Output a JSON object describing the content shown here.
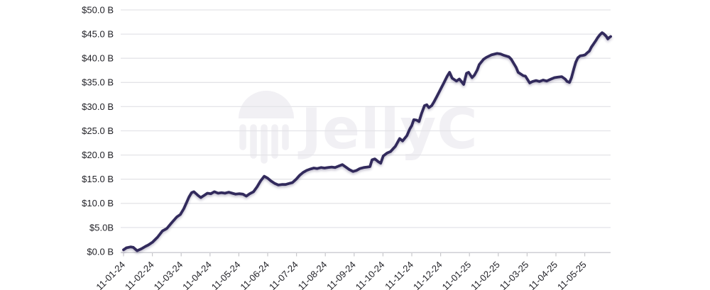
{
  "chart": {
    "watermark_text": "JellyC",
    "colors": {
      "background": "#ffffff",
      "line": "#312b5c",
      "line_shadow": "#3a3660",
      "grid": "#e4e4e8",
      "axis": "#cfcfd4",
      "tick": "#c7c7cb",
      "label": "#222228",
      "watermark": "#f1f0f4"
    }
  },
  "chart_data": {
    "type": "line",
    "legend": "none",
    "grid": "horizontal-only",
    "ylim": [
      0,
      50
    ],
    "y_unit": "USD billions",
    "y_ticks": [
      0,
      5,
      10,
      15,
      20,
      25,
      30,
      35,
      40,
      45,
      50
    ],
    "y_tick_labels": [
      "$0.0 B",
      "$5.0B",
      "$10.0 B",
      "$15.0 B",
      "$20.0 B",
      "$25.0 B",
      "$30.0 B",
      "$35.0 B",
      "$40.0 B",
      "$45.0 B",
      "$50.0 B"
    ],
    "x_tick_labels": [
      "11-01-24",
      "11-02-24",
      "11-03-24",
      "11-04-24",
      "11-05-24",
      "11-06-24",
      "11-07-24",
      "11-08-24",
      "11-09-24",
      "11-10-24",
      "11-11-24",
      "11-12-24",
      "11-01-25",
      "11-02-25",
      "11-03-25",
      "11-04-25",
      "11-05-25"
    ],
    "x_unit": "months since first tick (ticks monthly, dd-mm-yy)",
    "series": [
      {
        "name": "",
        "points": [
          [
            0,
            0.4
          ],
          [
            0.1,
            0.8
          ],
          [
            0.25,
            1.0
          ],
          [
            0.34,
            0.9
          ],
          [
            0.47,
            0.2
          ],
          [
            0.62,
            0.6
          ],
          [
            0.76,
            1.1
          ],
          [
            0.86,
            1.4
          ],
          [
            1.01,
            2.0
          ],
          [
            1.18,
            3.0
          ],
          [
            1.35,
            4.3
          ],
          [
            1.5,
            4.8
          ],
          [
            1.67,
            6.0
          ],
          [
            1.85,
            7.2
          ],
          [
            1.97,
            7.7
          ],
          [
            2.09,
            8.9
          ],
          [
            2.19,
            10.2
          ],
          [
            2.27,
            11.3
          ],
          [
            2.36,
            12.2
          ],
          [
            2.44,
            12.4
          ],
          [
            2.59,
            11.6
          ],
          [
            2.68,
            11.2
          ],
          [
            2.81,
            11.7
          ],
          [
            2.91,
            12.1
          ],
          [
            3.03,
            12.0
          ],
          [
            3.15,
            12.4
          ],
          [
            3.28,
            12.1
          ],
          [
            3.4,
            12.2
          ],
          [
            3.52,
            12.1
          ],
          [
            3.65,
            12.3
          ],
          [
            3.77,
            12.1
          ],
          [
            3.89,
            11.9
          ],
          [
            4.01,
            12.0
          ],
          [
            4.14,
            11.9
          ],
          [
            4.26,
            11.5
          ],
          [
            4.38,
            12.0
          ],
          [
            4.51,
            12.4
          ],
          [
            4.63,
            13.4
          ],
          [
            4.75,
            14.6
          ],
          [
            4.88,
            15.6
          ],
          [
            5.0,
            15.2
          ],
          [
            5.12,
            14.6
          ],
          [
            5.25,
            14.1
          ],
          [
            5.37,
            13.8
          ],
          [
            5.49,
            13.9
          ],
          [
            5.62,
            13.9
          ],
          [
            5.74,
            14.1
          ],
          [
            5.86,
            14.3
          ],
          [
            5.99,
            15.0
          ],
          [
            6.11,
            15.8
          ],
          [
            6.23,
            16.4
          ],
          [
            6.35,
            16.8
          ],
          [
            6.48,
            17.1
          ],
          [
            6.6,
            17.3
          ],
          [
            6.72,
            17.2
          ],
          [
            6.85,
            17.4
          ],
          [
            6.97,
            17.3
          ],
          [
            7.09,
            17.4
          ],
          [
            7.22,
            17.5
          ],
          [
            7.34,
            17.4
          ],
          [
            7.46,
            17.7
          ],
          [
            7.59,
            18.0
          ],
          [
            7.71,
            17.5
          ],
          [
            7.83,
            17.0
          ],
          [
            7.96,
            16.6
          ],
          [
            8.08,
            16.8
          ],
          [
            8.2,
            17.2
          ],
          [
            8.33,
            17.4
          ],
          [
            8.45,
            17.5
          ],
          [
            8.55,
            17.6
          ],
          [
            8.62,
            19.0
          ],
          [
            8.72,
            19.2
          ],
          [
            8.84,
            18.6
          ],
          [
            8.92,
            18.3
          ],
          [
            9.01,
            19.8
          ],
          [
            9.14,
            20.4
          ],
          [
            9.26,
            20.7
          ],
          [
            9.43,
            21.8
          ],
          [
            9.58,
            23.4
          ],
          [
            9.68,
            22.9
          ],
          [
            9.83,
            24.0
          ],
          [
            9.93,
            25.4
          ],
          [
            10.0,
            26.1
          ],
          [
            10.07,
            27.3
          ],
          [
            10.17,
            27.2
          ],
          [
            10.25,
            26.9
          ],
          [
            10.34,
            28.6
          ],
          [
            10.44,
            30.2
          ],
          [
            10.52,
            30.4
          ],
          [
            10.59,
            29.8
          ],
          [
            10.69,
            30.2
          ],
          [
            10.76,
            30.9
          ],
          [
            10.86,
            32.0
          ],
          [
            10.99,
            33.5
          ],
          [
            11.11,
            34.9
          ],
          [
            11.23,
            36.3
          ],
          [
            11.31,
            37.1
          ],
          [
            11.4,
            35.9
          ],
          [
            11.55,
            35.3
          ],
          [
            11.65,
            35.7
          ],
          [
            11.8,
            34.6
          ],
          [
            11.9,
            36.9
          ],
          [
            11.97,
            37.1
          ],
          [
            12.09,
            36.0
          ],
          [
            12.17,
            36.5
          ],
          [
            12.27,
            37.6
          ],
          [
            12.34,
            38.7
          ],
          [
            12.49,
            39.8
          ],
          [
            12.59,
            40.2
          ],
          [
            12.76,
            40.7
          ],
          [
            12.96,
            41.0
          ],
          [
            13.08,
            40.9
          ],
          [
            13.2,
            40.6
          ],
          [
            13.37,
            40.3
          ],
          [
            13.45,
            39.8
          ],
          [
            13.52,
            39.1
          ],
          [
            13.62,
            38.1
          ],
          [
            13.69,
            37.1
          ],
          [
            13.87,
            36.4
          ],
          [
            13.94,
            36.3
          ],
          [
            14.09,
            34.9
          ],
          [
            14.19,
            35.2
          ],
          [
            14.31,
            35.4
          ],
          [
            14.43,
            35.2
          ],
          [
            14.56,
            35.5
          ],
          [
            14.68,
            35.3
          ],
          [
            14.83,
            35.7
          ],
          [
            14.95,
            36.0
          ],
          [
            15.07,
            36.1
          ],
          [
            15.2,
            36.2
          ],
          [
            15.32,
            35.7
          ],
          [
            15.39,
            35.2
          ],
          [
            15.47,
            35.0
          ],
          [
            15.54,
            36.0
          ],
          [
            15.62,
            37.8
          ],
          [
            15.69,
            39.2
          ],
          [
            15.76,
            40.1
          ],
          [
            15.84,
            40.5
          ],
          [
            15.94,
            40.6
          ],
          [
            16.01,
            40.7
          ],
          [
            16.08,
            41.1
          ],
          [
            16.16,
            41.5
          ],
          [
            16.23,
            42.3
          ],
          [
            16.31,
            43.0
          ],
          [
            16.38,
            43.6
          ],
          [
            16.45,
            44.3
          ],
          [
            16.53,
            44.9
          ],
          [
            16.6,
            45.3
          ],
          [
            16.67,
            45.0
          ],
          [
            16.75,
            44.5
          ],
          [
            16.8,
            44.0
          ],
          [
            16.85,
            44.3
          ],
          [
            16.9,
            44.5
          ]
        ]
      }
    ]
  }
}
